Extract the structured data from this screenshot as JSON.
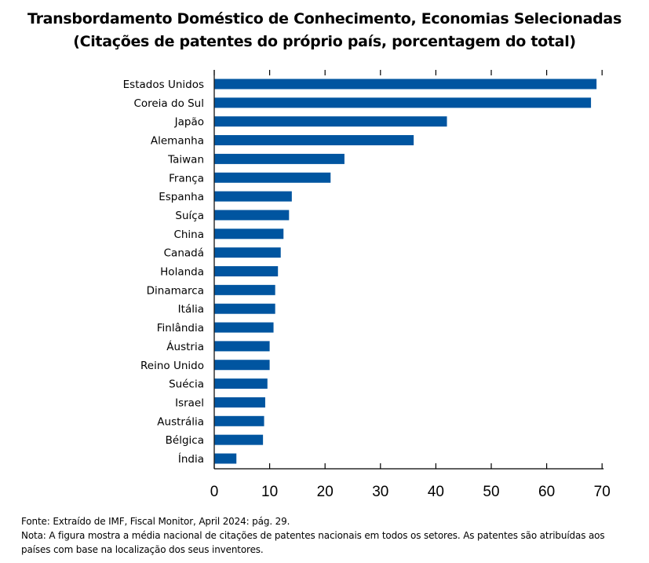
{
  "colors": {
    "bar": "#0055a0",
    "axis": "#000000",
    "text": "#000000",
    "background": "#ffffff"
  },
  "chart_data": {
    "type": "bar",
    "orientation": "horizontal",
    "title": "Transbordamento Doméstico de Conhecimento, Economias Selecionadas",
    "subtitle": "(Citações de patentes do próprio país, porcentagem do total)",
    "categories": [
      "Estados Unidos",
      "Coreia do Sul",
      "Japão",
      "Alemanha",
      "Taiwan",
      "França",
      "Espanha",
      "Suíça",
      "China",
      "Canadá",
      "Holanda",
      "Dinamarca",
      "Itália",
      "Finlândia",
      "Áustria",
      "Reino Unido",
      "Suécia",
      "Israel",
      "Austrália",
      "Bélgica",
      "Índia"
    ],
    "values": [
      69,
      68,
      42,
      36,
      23.5,
      21,
      14,
      13.5,
      12.5,
      12,
      11.5,
      11,
      11,
      10.7,
      10,
      10,
      9.6,
      9.2,
      9,
      8.8,
      4
    ],
    "xlim": [
      0,
      70
    ],
    "xticks": [
      0,
      10,
      20,
      30,
      40,
      50,
      60,
      70
    ],
    "xlabel": "",
    "ylabel": "",
    "grid": false,
    "legend": "none"
  },
  "footer": {
    "source": "Fonte: Extraído de IMF, Fiscal Monitor, April 2024: pág. 29.",
    "note": "Nota: A figura mostra a  média nacional de citações de patentes nacionais em todos os setores. As patentes são atribuídas aos países com base na localização dos seus inventores."
  }
}
